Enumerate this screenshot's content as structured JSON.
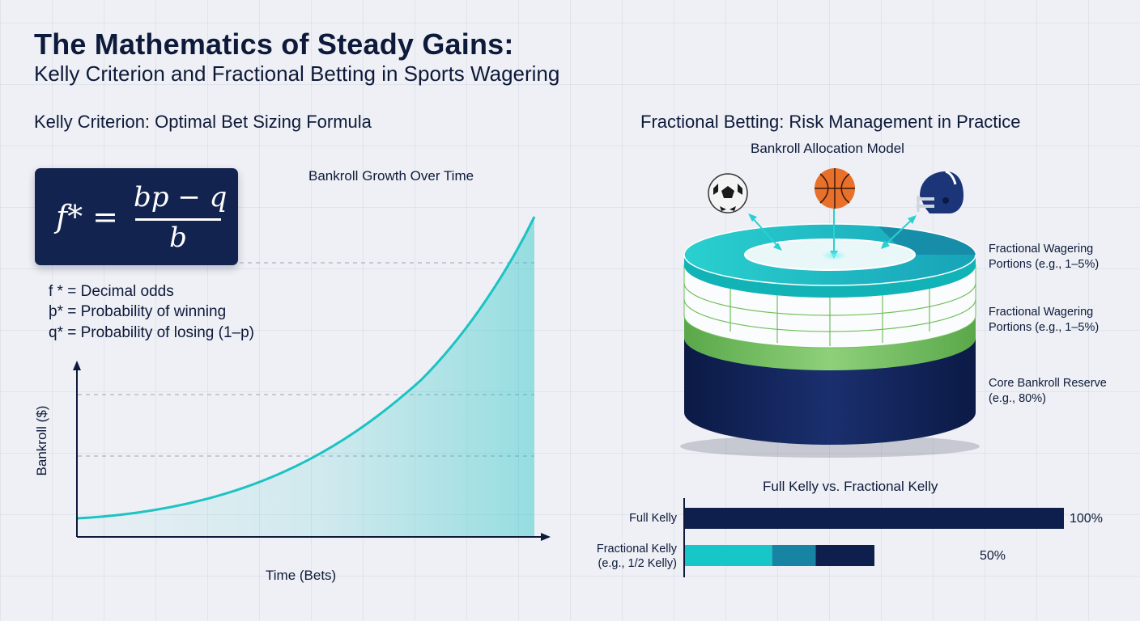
{
  "header": {
    "title": "The Mathematics of Steady Gains:",
    "subtitle": "Kelly Criterion and Fractional Betting in Sports Wagering"
  },
  "left_panel": {
    "section_title": "Kelly Criterion: Optimal Bet Sizing Formula",
    "formula": {
      "lhs": "f* =",
      "numerator": "bp − q",
      "denominator": "b"
    },
    "definitions": [
      "f * = Decimal odds",
      "þ* = Probability of winning",
      "q* = Probability of losing (1–p)"
    ],
    "chart_title": "Bankroll Growth Over Time",
    "x_label": "Time (Bets)",
    "y_label": "Bankroll ($)"
  },
  "right_panel": {
    "section_title": "Fractional Betting: Risk Management in Practice",
    "model_title": "Bankroll Allocation Model",
    "icons": [
      "soccer-ball-icon",
      "basketball-icon",
      "football-helmet-icon"
    ],
    "labels": [
      {
        "line1": "Fractional Wagering",
        "line2": "Portions (e.g., 1–5%)"
      },
      {
        "line1": "Fractional Wagering",
        "line2": "Portions (e.g., 1–5%)"
      },
      {
        "line1": "Core Bankroll Reserve",
        "line2": "(e.g., 80%)"
      }
    ],
    "comparison_title": "Full Kelly vs. Fractional Kelly"
  },
  "chart_data": {
    "type": "bar",
    "title": "Full Kelly vs. Fractional Kelly",
    "categories": [
      "Full Kelly",
      "Fractional Kelly (e.g., 1/2 Kelly)"
    ],
    "category_lines": [
      [
        "Full Kelly"
      ],
      [
        "Fractional Kelly",
        "(e.g., 1/2 Kelly)"
      ]
    ],
    "values": [
      100,
      50
    ],
    "value_labels": [
      "100%",
      "50%"
    ],
    "segments": [
      [
        {
          "value": 100,
          "color": "#0f1f4d"
        }
      ],
      [
        {
          "value": 23,
          "color": "#17c6c6"
        },
        {
          "value": 11.5,
          "color": "#1784a3"
        },
        {
          "value": 15.5,
          "color": "#0f1f4d"
        }
      ]
    ],
    "xlim": [
      0,
      100
    ]
  },
  "colors": {
    "navy": "#0f1f4d",
    "teal": "#1cc3c3",
    "green": "#6fbf5a",
    "mid_blue": "#1784a3"
  }
}
